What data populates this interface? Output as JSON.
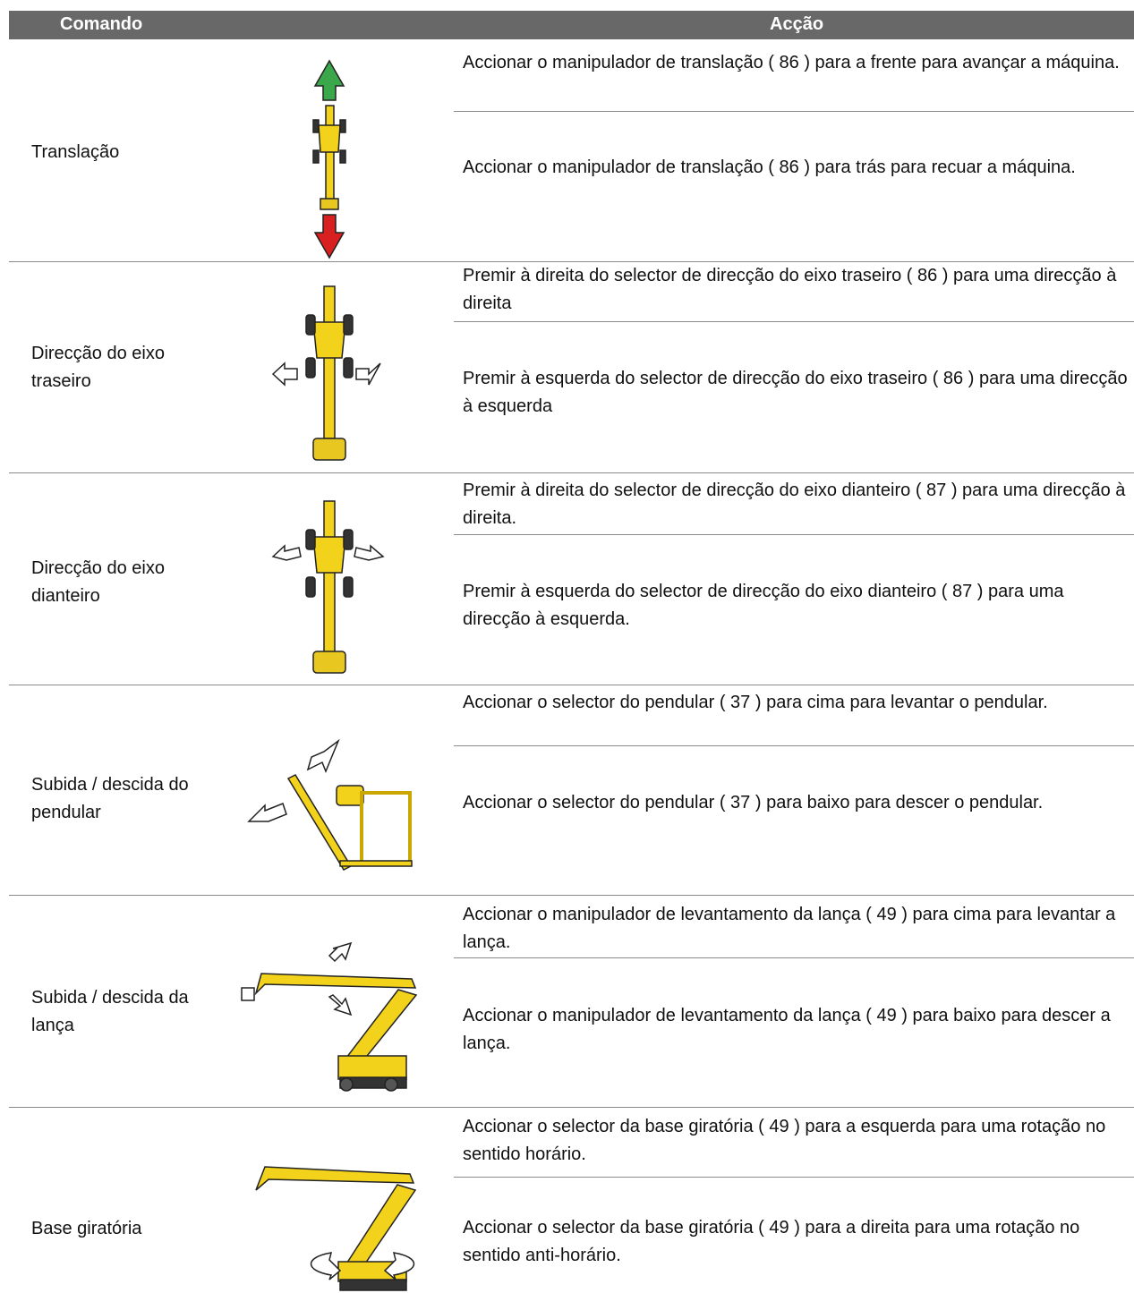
{
  "table": {
    "header": [
      "Comando",
      "Acção"
    ],
    "rows": [
      {
        "command": "Translação",
        "actions": [
          "Accionar o manipulador de translação ( 86 ) para a frente para avançar a máquina.",
          "Accionar o manipulador de translação ( 86 ) para trás para recuar a máquina."
        ]
      },
      {
        "command": "Direcção do eixo traseiro",
        "actions": [
          "Premir à direita do selector de direcção do eixo traseiro ( 86 ) para uma direcção à direita",
          "Premir à esquerda do selector de direcção do eixo traseiro ( 86 ) para uma direcção à esquerda"
        ]
      },
      {
        "command": "Direcção do eixo dianteiro",
        "actions": [
          "Premir à direita do selector de direcção do eixo dianteiro ( 87 ) para uma direcção à direita.",
          "Premir à esquerda do selector de direcção do eixo dianteiro ( 87 ) para uma direcção à esquerda."
        ]
      },
      {
        "command": "Subida / descida do pendular",
        "actions": [
          "Accionar o selector do pendular ( 37 ) para cima para levantar o pendular.",
          "Accionar o selector do pendular ( 37 ) para baixo para descer o pendular."
        ]
      },
      {
        "command": "Subida / descida da lança",
        "actions": [
          "Accionar o manipulador de levantamento da lança ( 49 ) para cima para levantar a lança.",
          "Accionar o manipulador de levantamento da lança ( 49 ) para baixo para descer a lança."
        ]
      },
      {
        "command": "Base giratória",
        "actions": [
          "Accionar o selector da base giratória ( 49 ) para a esquerda para uma rotação no sentido horário.",
          "Accionar o selector da base giratória ( 49 ) para a direita para uma rotação no sentido anti-horário."
        ]
      }
    ]
  }
}
